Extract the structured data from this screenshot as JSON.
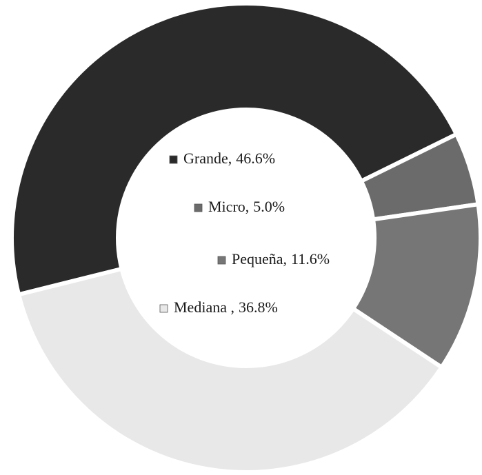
{
  "chart_data": {
    "type": "donut",
    "categories": [
      "Grande,",
      "Micro,",
      "Pequeña,",
      "Mediana ,"
    ],
    "values": [
      46.6,
      5.0,
      11.6,
      36.8
    ],
    "value_labels": [
      "46.6%",
      "5.0%",
      "11.6%",
      "36.8%"
    ],
    "colors": [
      "#2a2a2a",
      "#6b6b6b",
      "#767676",
      "#e8e8e8"
    ]
  }
}
